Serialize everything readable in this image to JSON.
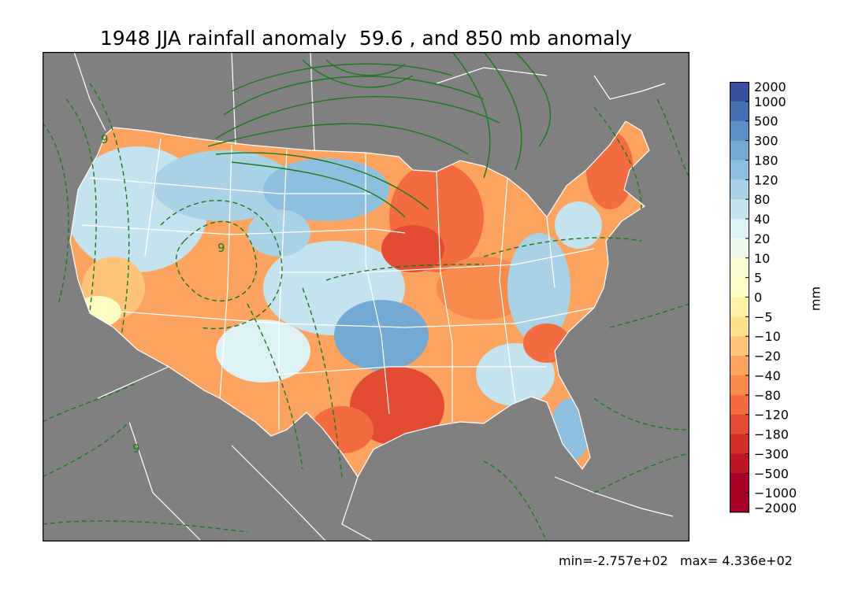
{
  "title": "1948 JJA rainfall anomaly  59.6 , and 850 mb anomaly",
  "colorbar": {
    "unit": "mm",
    "levels": [
      "2000",
      "1000",
      "500",
      "300",
      "180",
      "120",
      "80",
      "40",
      "20",
      "10",
      "5",
      "0",
      "−5",
      "−10",
      "−20",
      "−40",
      "−80",
      "−120",
      "−180",
      "−300",
      "−500",
      "−1000",
      "−2000"
    ],
    "colors": [
      "#3a4f9d",
      "#4570b3",
      "#5b8fc5",
      "#73a9d2",
      "#8ebfde",
      "#a9d2e6",
      "#c4e3ef",
      "#def1f5",
      "#eff8ec",
      "#fbfbd3",
      "#fefec4",
      "#fef1a7",
      "#fee08b",
      "#fdc47a",
      "#fca45f",
      "#f98a4d",
      "#f26c40",
      "#e34b33",
      "#d32f2a",
      "#bd1727",
      "#a50026",
      "#a50026"
    ]
  },
  "contour_labels": [
    "9",
    "9",
    "9"
  ],
  "colors": {
    "ocean": "#808080",
    "boundaries": "#ffffff",
    "contour": "#1a7a1a"
  },
  "stats": {
    "min": "min=-2.757e+02",
    "max": "max= 4.336e+02"
  }
}
